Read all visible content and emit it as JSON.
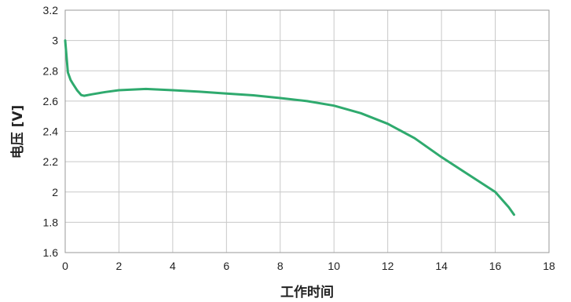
{
  "chart_data": {
    "type": "line",
    "title": "",
    "xlabel": "工作时间",
    "ylabel": "电压 [V]",
    "xlim": [
      0,
      18
    ],
    "ylim": [
      1.6,
      3.2
    ],
    "xticks": [
      0,
      2,
      4,
      6,
      8,
      10,
      12,
      14,
      16,
      18
    ],
    "yticks": [
      1.6,
      1.8,
      2,
      2.2,
      2.4,
      2.6,
      2.8,
      3,
      3.2
    ],
    "xtick_labels": [
      "0",
      "2",
      "4",
      "6",
      "8",
      "10",
      "12",
      "14",
      "16",
      "18"
    ],
    "ytick_labels": [
      "1.6",
      "1.8",
      "2",
      "2.2",
      "2.4",
      "2.6",
      "2.8",
      "3",
      "3.2"
    ],
    "grid": true,
    "legend": "none",
    "series": [
      {
        "color": "#2faa6e",
        "x": [
          0.0,
          0.1,
          0.2,
          0.3,
          0.45,
          0.6,
          0.7,
          1.0,
          1.5,
          2.0,
          3.0,
          4.0,
          5.0,
          6.0,
          7.0,
          8.0,
          9.0,
          10.0,
          11.0,
          12.0,
          13.0,
          14.0,
          15.0,
          16.0,
          16.5,
          16.7
        ],
        "y": [
          3.0,
          2.79,
          2.74,
          2.71,
          2.67,
          2.64,
          2.635,
          2.645,
          2.66,
          2.672,
          2.68,
          2.672,
          2.662,
          2.65,
          2.638,
          2.62,
          2.6,
          2.57,
          2.52,
          2.45,
          2.355,
          2.23,
          2.115,
          2.0,
          1.9,
          1.85
        ]
      }
    ]
  }
}
